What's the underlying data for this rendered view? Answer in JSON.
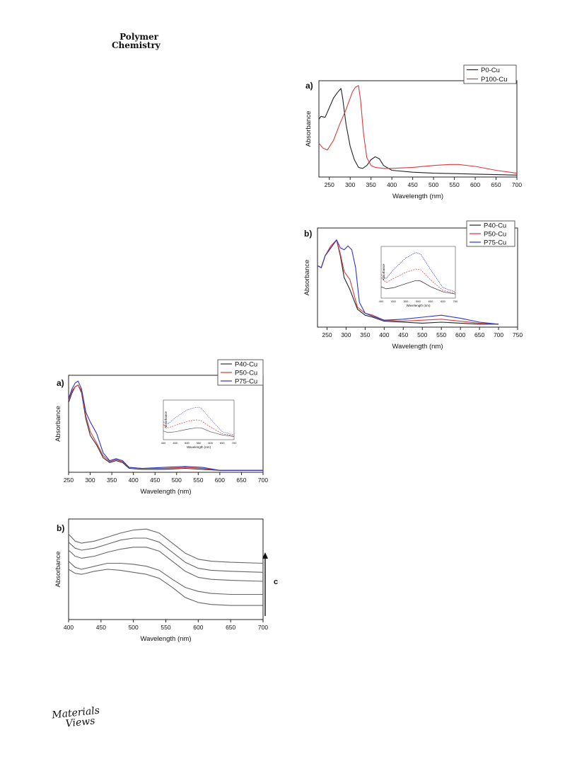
{
  "header": {
    "journal_line1": "Polymer",
    "journal_line2": "Chemistry"
  },
  "footer": {
    "logo_line1": "Materials",
    "logo_line2": "Views"
  },
  "chart_data": [
    {
      "id": "top_a",
      "type": "line",
      "panel_label": "a)",
      "xlabel": "Wavelength (nm)",
      "ylabel": "Absorbance",
      "xlim": [
        225,
        700
      ],
      "xticks": [
        250,
        300,
        350,
        400,
        450,
        500,
        550,
        600,
        650,
        700
      ],
      "ylim": [
        0,
        1
      ],
      "legend_position": "top-right",
      "series": [
        {
          "name": "P0-Cu",
          "color": "#222222",
          "x": [
            225,
            230,
            240,
            250,
            260,
            270,
            278,
            282,
            290,
            300,
            310,
            320,
            330,
            340,
            350,
            360,
            370,
            380,
            400,
            450,
            500,
            550,
            600,
            650,
            700
          ],
          "y": [
            0.6,
            0.63,
            0.62,
            0.72,
            0.82,
            0.88,
            0.92,
            0.82,
            0.55,
            0.32,
            0.18,
            0.1,
            0.09,
            0.12,
            0.18,
            0.21,
            0.19,
            0.12,
            0.07,
            0.05,
            0.04,
            0.035,
            0.03,
            0.025,
            0.02
          ]
        },
        {
          "name": "P100-Cu",
          "color": "#d83b3b",
          "x": [
            225,
            235,
            245,
            260,
            275,
            290,
            305,
            312,
            320,
            325,
            332,
            340,
            350,
            360,
            380,
            400,
            450,
            500,
            540,
            560,
            600,
            650,
            700
          ],
          "y": [
            0.35,
            0.3,
            0.28,
            0.38,
            0.55,
            0.7,
            0.88,
            0.93,
            0.95,
            0.8,
            0.45,
            0.2,
            0.12,
            0.1,
            0.09,
            0.09,
            0.1,
            0.12,
            0.13,
            0.13,
            0.11,
            0.07,
            0.04
          ]
        }
      ]
    },
    {
      "id": "top_b",
      "type": "line",
      "panel_label": "b)",
      "xlabel": "Wavelength (nm)",
      "ylabel": "Absorbance",
      "xlim": [
        225,
        750
      ],
      "xticks": [
        250,
        300,
        350,
        400,
        450,
        500,
        550,
        600,
        650,
        700,
        750
      ],
      "ylim": [
        0,
        1
      ],
      "legend_position": "top-right",
      "series": [
        {
          "name": "P40-Cu",
          "color": "#222222",
          "x": [
            225,
            235,
            245,
            260,
            275,
            285,
            295,
            310,
            330,
            350,
            370,
            400,
            450,
            500,
            550,
            600,
            650,
            700
          ],
          "y": [
            0.62,
            0.6,
            0.72,
            0.8,
            0.88,
            0.72,
            0.5,
            0.38,
            0.18,
            0.12,
            0.1,
            0.06,
            0.05,
            0.04,
            0.05,
            0.04,
            0.03,
            0.03
          ]
        },
        {
          "name": "P50-Cu",
          "color": "#d83b3b",
          "x": [
            225,
            235,
            245,
            260,
            275,
            285,
            295,
            310,
            330,
            350,
            370,
            400,
            450,
            500,
            550,
            600,
            650,
            700
          ],
          "y": [
            0.62,
            0.6,
            0.72,
            0.82,
            0.88,
            0.74,
            0.56,
            0.48,
            0.2,
            0.14,
            0.12,
            0.07,
            0.06,
            0.07,
            0.08,
            0.06,
            0.04,
            0.03
          ]
        },
        {
          "name": "P75-Cu",
          "color": "#2b36c9",
          "x": [
            225,
            235,
            245,
            260,
            275,
            285,
            295,
            305,
            315,
            325,
            335,
            350,
            370,
            400,
            450,
            500,
            550,
            600,
            650,
            700
          ],
          "y": [
            0.62,
            0.6,
            0.72,
            0.8,
            0.88,
            0.8,
            0.78,
            0.82,
            0.78,
            0.6,
            0.25,
            0.14,
            0.11,
            0.07,
            0.08,
            0.1,
            0.12,
            0.09,
            0.05,
            0.03
          ]
        }
      ],
      "inset": {
        "xlim": [
          400,
          700
        ],
        "xticks": [
          400,
          450,
          500,
          550,
          600,
          650,
          700
        ],
        "xlabel": "Wavelength (nm)",
        "ylabel": "Absorbance",
        "series": [
          {
            "name": "P40-Cu",
            "color": "#222222",
            "x": [
              400,
              420,
              450,
              500,
              540,
              560,
              600,
              650,
              700
            ],
            "y": [
              0.22,
              0.18,
              0.2,
              0.28,
              0.34,
              0.33,
              0.22,
              0.12,
              0.08
            ]
          },
          {
            "name": "P50-Cu",
            "color": "#d83b3b",
            "x": [
              400,
              420,
              450,
              500,
              540,
              560,
              600,
              650,
              700
            ],
            "y": [
              0.4,
              0.3,
              0.38,
              0.5,
              0.56,
              0.55,
              0.35,
              0.15,
              0.1
            ]
          },
          {
            "name": "P75-Cu",
            "color": "#2b36c9",
            "x": [
              400,
              420,
              450,
              500,
              540,
              560,
              600,
              650,
              700
            ],
            "y": [
              0.45,
              0.38,
              0.55,
              0.78,
              0.88,
              0.85,
              0.55,
              0.2,
              0.12
            ]
          }
        ]
      }
    },
    {
      "id": "bottom_a",
      "type": "line",
      "panel_label": "a)",
      "xlabel": "Wavelength (nm)",
      "ylabel": "Absorbance",
      "xlim": [
        250,
        700
      ],
      "xticks": [
        250,
        300,
        350,
        400,
        450,
        500,
        550,
        600,
        650,
        700
      ],
      "ylim": [
        0,
        1
      ],
      "legend_position": "top-right",
      "series": [
        {
          "name": "P40-Cu",
          "color": "#333333",
          "x": [
            250,
            258,
            265,
            272,
            280,
            290,
            300,
            315,
            330,
            345,
            360,
            375,
            390,
            420,
            470,
            520,
            560,
            600,
            650,
            700
          ],
          "y": [
            0.72,
            0.82,
            0.88,
            0.9,
            0.82,
            0.55,
            0.38,
            0.28,
            0.15,
            0.1,
            0.12,
            0.1,
            0.04,
            0.03,
            0.03,
            0.04,
            0.03,
            0.02,
            0.02,
            0.02
          ]
        },
        {
          "name": "P50-Cu",
          "color": "#d83b3b",
          "x": [
            250,
            258,
            265,
            272,
            280,
            290,
            300,
            315,
            330,
            345,
            360,
            375,
            390,
            420,
            470,
            520,
            560,
            600,
            650,
            700
          ],
          "y": [
            0.74,
            0.84,
            0.88,
            0.9,
            0.84,
            0.58,
            0.42,
            0.3,
            0.17,
            0.11,
            0.13,
            0.11,
            0.05,
            0.04,
            0.04,
            0.05,
            0.04,
            0.02,
            0.02,
            0.02
          ]
        },
        {
          "name": "P75-Cu",
          "color": "#2b36c9",
          "x": [
            250,
            258,
            265,
            272,
            280,
            290,
            300,
            315,
            330,
            345,
            360,
            375,
            390,
            420,
            470,
            520,
            560,
            600,
            650,
            700
          ],
          "y": [
            0.76,
            0.86,
            0.92,
            0.94,
            0.86,
            0.62,
            0.52,
            0.4,
            0.2,
            0.12,
            0.14,
            0.12,
            0.05,
            0.04,
            0.05,
            0.06,
            0.05,
            0.02,
            0.02,
            0.02
          ]
        }
      ],
      "inset": {
        "xlim": [
          400,
          700
        ],
        "xticks": [
          400,
          450,
          500,
          550,
          600,
          650,
          700
        ],
        "xlabel": "Wavelength (nm)",
        "ylabel": "Absorbance",
        "series": [
          {
            "name": "P40-Cu",
            "color": "#555555",
            "x": [
              400,
              420,
              450,
              500,
              540,
              560,
              600,
              650,
              700
            ],
            "y": [
              0.22,
              0.18,
              0.2,
              0.26,
              0.3,
              0.3,
              0.2,
              0.12,
              0.08
            ]
          },
          {
            "name": "P50-Cu",
            "color": "#d83b3b",
            "x": [
              400,
              420,
              450,
              500,
              540,
              560,
              600,
              650,
              700
            ],
            "y": [
              0.38,
              0.3,
              0.36,
              0.46,
              0.5,
              0.48,
              0.32,
              0.15,
              0.1
            ]
          },
          {
            "name": "P75-Cu",
            "color": "#5a62d8",
            "x": [
              400,
              420,
              450,
              500,
              540,
              560,
              600,
              650,
              700
            ],
            "y": [
              0.45,
              0.4,
              0.55,
              0.75,
              0.82,
              0.8,
              0.52,
              0.2,
              0.12
            ]
          }
        ]
      }
    },
    {
      "id": "bottom_b",
      "type": "line",
      "panel_label": "b)",
      "xlabel": "Wavelength (nm)",
      "ylabel": "Absorbance",
      "xlim": [
        400,
        700
      ],
      "xticks": [
        400,
        450,
        500,
        550,
        600,
        650,
        700
      ],
      "ylim": [
        0,
        1
      ],
      "arrow_label": "c",
      "series": [
        {
          "color": "#666666",
          "x": [
            400,
            410,
            420,
            440,
            460,
            480,
            500,
            520,
            540,
            560,
            580,
            600,
            620,
            650,
            700
          ],
          "y": [
            0.85,
            0.78,
            0.76,
            0.78,
            0.82,
            0.86,
            0.89,
            0.9,
            0.86,
            0.76,
            0.66,
            0.6,
            0.58,
            0.57,
            0.56
          ]
        },
        {
          "color": "#666666",
          "x": [
            400,
            410,
            420,
            440,
            460,
            480,
            500,
            520,
            540,
            560,
            580,
            600,
            620,
            650,
            700
          ],
          "y": [
            0.77,
            0.71,
            0.69,
            0.71,
            0.75,
            0.79,
            0.81,
            0.81,
            0.77,
            0.67,
            0.57,
            0.51,
            0.49,
            0.48,
            0.47
          ]
        },
        {
          "color": "#666666",
          "x": [
            400,
            410,
            420,
            440,
            460,
            480,
            500,
            520,
            540,
            560,
            580,
            600,
            620,
            650,
            700
          ],
          "y": [
            0.69,
            0.63,
            0.61,
            0.63,
            0.67,
            0.7,
            0.72,
            0.72,
            0.68,
            0.58,
            0.48,
            0.42,
            0.4,
            0.39,
            0.38
          ]
        },
        {
          "color": "#666666",
          "x": [
            400,
            410,
            420,
            440,
            460,
            480,
            500,
            520,
            540,
            560,
            580,
            600,
            620,
            650,
            700
          ],
          "y": [
            0.58,
            0.52,
            0.5,
            0.53,
            0.56,
            0.56,
            0.55,
            0.53,
            0.49,
            0.4,
            0.32,
            0.28,
            0.26,
            0.25,
            0.25
          ]
        },
        {
          "color": "#666666",
          "x": [
            400,
            410,
            420,
            440,
            460,
            480,
            500,
            520,
            540,
            560,
            580,
            600,
            620,
            650,
            700
          ],
          "y": [
            0.5,
            0.46,
            0.45,
            0.48,
            0.5,
            0.49,
            0.47,
            0.45,
            0.41,
            0.32,
            0.22,
            0.17,
            0.15,
            0.14,
            0.14
          ]
        }
      ]
    }
  ]
}
